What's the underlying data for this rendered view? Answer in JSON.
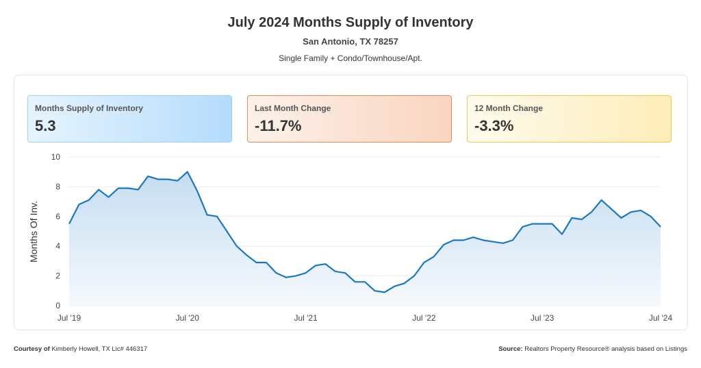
{
  "header": {
    "title": "July 2024 Months Supply of Inventory",
    "location": "San Antonio, TX 78257",
    "property_types": "Single Family + Condo/Townhouse/Apt."
  },
  "cards": [
    {
      "label": "Months Supply of Inventory",
      "value": "5.3",
      "color": "#b5dcfb"
    },
    {
      "label": "Last Month Change",
      "value": "-11.7%",
      "color": "#f9d5c0"
    },
    {
      "label": "12 Month Change",
      "value": "-3.3%",
      "color": "#fdedb8"
    }
  ],
  "footer": {
    "courtesy_label": "Courtesy of",
    "courtesy_text": "Kimberly Howell, TX Lic# 446317",
    "source_label": "Source:",
    "source_text": "Realtors Property Resource® analysis based on Listings"
  },
  "chart_data": {
    "type": "area",
    "ylabel": "Months Of Inv.",
    "ylim": [
      0,
      10
    ],
    "yticks": [
      "0",
      "2",
      "4",
      "6",
      "8",
      "10"
    ],
    "xticks": [
      "Jul '19",
      "Jul '20",
      "Jul '21",
      "Jul '22",
      "Jul '23",
      "Jul '24"
    ],
    "x_start": "2019-07",
    "x_end": "2024-07",
    "grid": true,
    "line_color": "#1a78c2",
    "values": [
      5.5,
      6.8,
      7.1,
      7.8,
      7.3,
      7.9,
      7.9,
      7.8,
      8.7,
      8.5,
      8.5,
      8.4,
      9.0,
      7.7,
      6.1,
      6.0,
      5.0,
      4.0,
      3.4,
      2.9,
      2.9,
      2.2,
      1.9,
      2.0,
      2.2,
      2.7,
      2.8,
      2.3,
      2.2,
      1.6,
      1.6,
      1.0,
      0.9,
      1.3,
      1.5,
      2.0,
      2.9,
      3.3,
      4.1,
      4.4,
      4.4,
      4.6,
      4.4,
      4.3,
      4.2,
      4.4,
      5.3,
      5.5,
      5.5,
      5.5,
      4.8,
      5.9,
      5.8,
      6.3,
      7.1,
      6.5,
      5.9,
      6.3,
      6.4,
      6.0,
      5.3
    ]
  }
}
